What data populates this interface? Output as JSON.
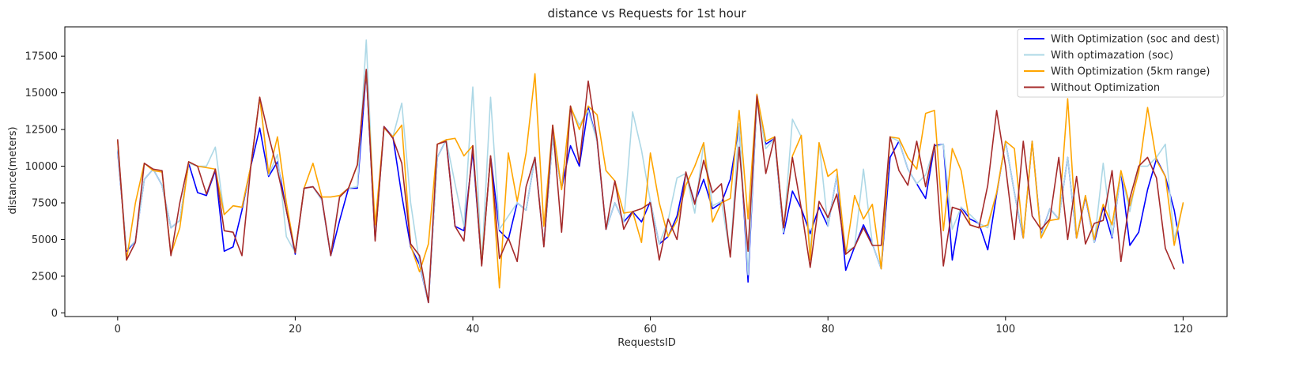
{
  "chart_data": {
    "type": "line",
    "title": "distance vs Requests for 1st hour",
    "xlabel": "RequestsID",
    "ylabel": "distance(meters)",
    "xlim": [
      -5.95,
      124.95
    ],
    "ylim": [
      -250,
      19500
    ],
    "xticks": [
      0,
      20,
      40,
      60,
      80,
      100,
      120
    ],
    "yticks": [
      0,
      2500,
      5000,
      7500,
      10000,
      12500,
      15000,
      17500
    ],
    "grid": false,
    "legend_position": "top-right",
    "series": [
      {
        "name": "With Optimization (soc and dest)",
        "color": "#0000ff",
        "values": [
          11000,
          4200,
          4900,
          9100,
          9800,
          8700,
          5800,
          6300,
          10200,
          8200,
          8000,
          9700,
          4200,
          4500,
          7000,
          10000,
          12600,
          9300,
          10300,
          7000,
          4000,
          8500,
          8600,
          7700,
          3900,
          6300,
          8500,
          8500,
          16500,
          5000,
          12700,
          12000,
          8000,
          4500,
          3300,
          700,
          10600,
          11800,
          5900,
          5600,
          11000,
          3300,
          10700,
          5600,
          5000,
          7500,
          7000,
          10600,
          4600,
          11900,
          8500,
          11400,
          10000,
          14000,
          11700,
          5700,
          7500,
          6200,
          6900,
          6200,
          7600,
          4700,
          5200,
          6600,
          9500,
          7500,
          9100,
          7100,
          7500,
          9100,
          12800,
          2100,
          14600,
          11500,
          11900,
          5400,
          8300,
          7100,
          5400,
          7200,
          5900,
          9400,
          2900,
          4500,
          6000,
          4700,
          3000,
          10600,
          11700,
          9800,
          8800,
          7800,
          11400,
          11500,
          3600,
          7200,
          6400,
          6100,
          4300,
          8100,
          11700,
          8200,
          5100,
          11700,
          5300,
          7100,
          6400,
          10600,
          5100,
          7900,
          4800,
          7200,
          5100,
          9600,
          4600,
          5500,
          8400,
          10500,
          9300,
          7000,
          3400
        ]
      },
      {
        "name": "With optimazation (soc)",
        "color": "#add8e6",
        "values": [
          11100,
          4300,
          4900,
          9100,
          9800,
          8700,
          5800,
          6300,
          10200,
          10000,
          10000,
          11300,
          6700,
          7300,
          7200,
          10000,
          14700,
          9400,
          10800,
          5200,
          4100,
          8500,
          8600,
          7700,
          3900,
          8000,
          8500,
          8600,
          18600,
          5100,
          12600,
          12000,
          14300,
          7500,
          3400,
          700,
          10600,
          11800,
          8800,
          5900,
          15400,
          3300,
          14700,
          5700,
          6600,
          7500,
          7000,
          10600,
          4600,
          11900,
          8500,
          14000,
          12800,
          13800,
          11700,
          5700,
          7500,
          6200,
          13700,
          11100,
          7600,
          4700,
          6300,
          9200,
          9500,
          6800,
          11600,
          7300,
          7600,
          3900,
          12900,
          2600,
          14600,
          11200,
          11900,
          5500,
          13200,
          12000,
          4100,
          11600,
          5900,
          9400,
          4200,
          4500,
          9800,
          4700,
          3000,
          12000,
          11700,
          9800,
          8800,
          9400,
          11300,
          11500,
          5700,
          7200,
          6700,
          6100,
          5800,
          8200,
          11700,
          8200,
          5200,
          11700,
          5200,
          7100,
          6400,
          10600,
          5200,
          8000,
          4800,
          10200,
          5200,
          9600,
          6900,
          10000,
          10000,
          10600,
          11500,
          5000,
          7400
        ]
      },
      {
        "name": "With Optimization (5km range)",
        "color": "#ffa500",
        "values": [
          11700,
          3600,
          7500,
          10200,
          9700,
          9600,
          4000,
          5800,
          10300,
          10000,
          9900,
          9800,
          6700,
          7300,
          7200,
          10000,
          14700,
          9500,
          12000,
          7500,
          4100,
          8500,
          10200,
          7900,
          7900,
          8000,
          8500,
          10100,
          16500,
          6000,
          12600,
          12000,
          12800,
          4600,
          2800,
          4700,
          11500,
          11800,
          11900,
          10700,
          11400,
          3300,
          10700,
          1700,
          10900,
          7600,
          10900,
          16300,
          5900,
          12800,
          8400,
          14100,
          12500,
          14100,
          13500,
          9700,
          9000,
          6800,
          6900,
          4800,
          10900,
          7500,
          5200,
          6300,
          8700,
          10000,
          11600,
          6200,
          7500,
          7800,
          13800,
          6400,
          14900,
          11700,
          12000,
          5800,
          10700,
          12100,
          3600,
          11600,
          9300,
          9800,
          4000,
          8000,
          6400,
          7400,
          3000,
          12000,
          11900,
          10600,
          9800,
          13600,
          13800,
          5600,
          11200,
          9700,
          6000,
          5800,
          6000,
          8200,
          11700,
          11200,
          5100,
          11700,
          5100,
          6300,
          6400,
          14600,
          5100,
          8000,
          5000,
          7400,
          6000,
          9700,
          7300,
          9600,
          14000,
          10400,
          9300,
          4600,
          7500
        ]
      },
      {
        "name": "Without Optimization",
        "color": "#a52a2a",
        "values": [
          11800,
          3600,
          4800,
          10200,
          9800,
          9700,
          3900,
          7500,
          10300,
          10000,
          8100,
          9800,
          5600,
          5500,
          3900,
          10000,
          14700,
          12100,
          9700,
          7000,
          4100,
          8500,
          8600,
          7800,
          3900,
          7900,
          8500,
          10100,
          16600,
          4900,
          12700,
          11900,
          10200,
          4700,
          3900,
          700,
          11500,
          11700,
          5900,
          4900,
          11400,
          3200,
          10700,
          3700,
          5100,
          3500,
          8600,
          10600,
          4500,
          12800,
          5500,
          14100,
          10200,
          15800,
          11800,
          5700,
          9000,
          5700,
          6900,
          7100,
          7500,
          3600,
          6400,
          5000,
          9600,
          7400,
          10400,
          8200,
          8800,
          3800,
          11300,
          4200,
          14800,
          9500,
          12000,
          5800,
          10600,
          7100,
          3100,
          7600,
          6500,
          8100,
          4000,
          4500,
          5800,
          4600,
          4600,
          12000,
          9700,
          8700,
          11700,
          8600,
          11500,
          3200,
          7200,
          7000,
          6000,
          5800,
          8700,
          13800,
          10000,
          5000,
          11700,
          6600,
          5700,
          6400,
          10600,
          5000,
          9300,
          4700,
          6100,
          6300,
          9700,
          3500,
          7800,
          10000,
          10600,
          9200,
          4400,
          3000
        ]
      }
    ]
  }
}
